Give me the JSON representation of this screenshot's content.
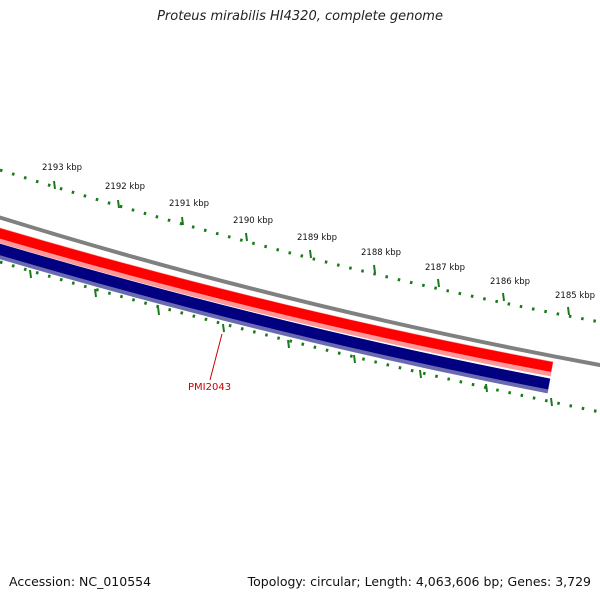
{
  "title": "Proteus mirabilis HI4320, complete genome",
  "footer": {
    "accession": "Accession: NC_010554",
    "summary": "Topology: circular; Length: 4,063,606 bp; Genes: 3,729"
  },
  "ruler": {
    "labels": [
      "2193 kbp",
      "2192 kbp",
      "2191 kbp",
      "2190 kbp",
      "2189 kbp",
      "2188 kbp",
      "2187 kbp",
      "2186 kbp",
      "2185 kbp"
    ]
  },
  "gene_label": "PMI2043",
  "colors": {
    "backbone": "#808080",
    "forward_strand": "#ff0000",
    "forward_edge": "#ff9999",
    "reverse_strand": "#000080",
    "reverse_edge": "#6a6ab0",
    "ticks": "#1a7a1a",
    "gene_label": "#cc0000"
  }
}
